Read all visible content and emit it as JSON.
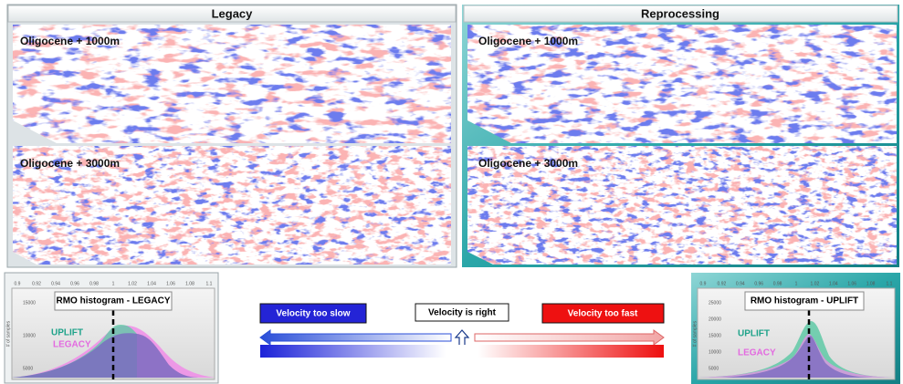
{
  "panels": [
    {
      "title": "Legacy",
      "sections": [
        "Oligocene + 1000m",
        "Oligocene + 3000m"
      ]
    },
    {
      "title": "Reprocessing",
      "sections": [
        "Oligocene + 1000m",
        "Oligocene + 3000m"
      ]
    }
  ],
  "histograms": [
    {
      "title": "RMO histogram - LEGACY",
      "labels": [
        "UPLIFT",
        "LEGACY"
      ],
      "y_label": "# of samples",
      "x_ticks": [
        "0.9",
        "0.92",
        "0.94",
        "0.96",
        "0.98",
        "1",
        "1.02",
        "1.04",
        "1.06",
        "1.08",
        "1.1"
      ],
      "y_ticks": [
        "15000",
        "10000",
        "5000"
      ]
    },
    {
      "title": "RMO histogram - UPLIFT",
      "labels": [
        "UPLIFT",
        "LEGACY"
      ],
      "y_label": "# of samples",
      "x_ticks": [
        "0.9",
        "0.92",
        "0.94",
        "0.96",
        "0.98",
        "1",
        "1.02",
        "1.04",
        "1.06",
        "1.08",
        "1.1"
      ],
      "y_ticks": [
        "25000",
        "20000",
        "15000",
        "10000",
        "5000"
      ]
    }
  ],
  "legend": {
    "slow": "Velocity too slow",
    "right": "Velocity is right",
    "fast": "Velocity too fast"
  }
}
